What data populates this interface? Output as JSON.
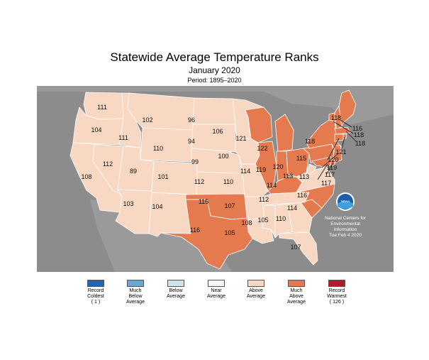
{
  "header": {
    "title": "Statewide Average Temperature Ranks",
    "subtitle": "January 2020",
    "period": "Period: 1895–2020"
  },
  "colors": {
    "water_and_background": "#8c8c8c",
    "record_coldest": "#2166ac",
    "much_below_average": "#6aa6d1",
    "below_average": "#cfe3ee",
    "near_average": "#fbf3ef",
    "above_average": "#f8d8c3",
    "much_above_average": "#e57a4e",
    "record_warmest": "#b11a2c"
  },
  "logo": {
    "name": "noaa-logo",
    "text": "NOAA"
  },
  "credit": {
    "line1": "National Centers for",
    "line2": "Environmental",
    "line3": "Information",
    "line4": "Tue Feb  4 2020"
  },
  "legend": [
    {
      "label": "Record\nColdest\n( 1 )",
      "color_key": "record_coldest"
    },
    {
      "label": "Much\nBelow\nAverage",
      "color_key": "much_below_average"
    },
    {
      "label": "Below\nAverage",
      "color_key": "below_average"
    },
    {
      "label": "Near\nAverage",
      "color_key": "near_average"
    },
    {
      "label": "Above\nAverage",
      "color_key": "above_average"
    },
    {
      "label": "Much\nAbove\nAverage",
      "color_key": "much_above_average"
    },
    {
      "label": "Record\nWarmest\n( 126 )",
      "color_key": "record_warmest"
    }
  ],
  "states": [
    {
      "state": "WA",
      "rank": "111",
      "category": "above_average"
    },
    {
      "state": "OR",
      "rank": "104",
      "category": "above_average"
    },
    {
      "state": "CA",
      "rank": "108",
      "category": "above_average"
    },
    {
      "state": "ID",
      "rank": "111",
      "category": "above_average"
    },
    {
      "state": "NV",
      "rank": "112",
      "category": "above_average"
    },
    {
      "state": "MT",
      "rank": "102",
      "category": "above_average"
    },
    {
      "state": "WY",
      "rank": "110",
      "category": "above_average"
    },
    {
      "state": "UT",
      "rank": "89",
      "category": "above_average"
    },
    {
      "state": "CO",
      "rank": "101",
      "category": "above_average"
    },
    {
      "state": "AZ",
      "rank": "103",
      "category": "above_average"
    },
    {
      "state": "NM",
      "rank": "104",
      "category": "above_average"
    },
    {
      "state": "ND",
      "rank": "96",
      "category": "above_average"
    },
    {
      "state": "SD",
      "rank": "94",
      "category": "above_average"
    },
    {
      "state": "NE",
      "rank": "99",
      "category": "above_average"
    },
    {
      "state": "KS",
      "rank": "112",
      "category": "above_average"
    },
    {
      "state": "OK",
      "rank": "115",
      "category": "much_above_average"
    },
    {
      "state": "TX",
      "rank": "116",
      "category": "much_above_average"
    },
    {
      "state": "MN",
      "rank": "106",
      "category": "above_average"
    },
    {
      "state": "IA",
      "rank": "100",
      "category": "above_average"
    },
    {
      "state": "MO",
      "rank": "110",
      "category": "above_average"
    },
    {
      "state": "AR",
      "rank": "107",
      "category": "above_average"
    },
    {
      "state": "LA",
      "rank": "105",
      "category": "above_average"
    },
    {
      "state": "WI",
      "rank": "121",
      "category": "much_above_average"
    },
    {
      "state": "IL",
      "rank": "114",
      "category": "much_above_average"
    },
    {
      "state": "MI",
      "rank": "122",
      "category": "much_above_average"
    },
    {
      "state": "IN",
      "rank": "119",
      "category": "much_above_average"
    },
    {
      "state": "OH",
      "rank": "120",
      "category": "much_above_average"
    },
    {
      "state": "KY",
      "rank": "114",
      "category": "much_above_average"
    },
    {
      "state": "TN",
      "rank": "112",
      "category": "above_average"
    },
    {
      "state": "MS",
      "rank": "108",
      "category": "above_average"
    },
    {
      "state": "AL",
      "rank": "105",
      "category": "above_average"
    },
    {
      "state": "GA",
      "rank": "110",
      "category": "above_average"
    },
    {
      "state": "FL",
      "rank": "107",
      "category": "above_average"
    },
    {
      "state": "SC",
      "rank": "114",
      "category": "much_above_average"
    },
    {
      "state": "NC",
      "rank": "116",
      "category": "much_above_average"
    },
    {
      "state": "VA",
      "rank": "113",
      "category": "above_average"
    },
    {
      "state": "WV",
      "rank": "113",
      "category": "above_average"
    },
    {
      "state": "PA",
      "rank": "115",
      "category": "much_above_average"
    },
    {
      "state": "NY",
      "rank": "118",
      "category": "much_above_average"
    },
    {
      "state": "ME",
      "rank": "118",
      "category": "much_above_average"
    },
    {
      "state": "NH",
      "rank": "116",
      "category": "much_above_average"
    },
    {
      "state": "VT",
      "rank": "118",
      "category": "much_above_average"
    },
    {
      "state": "MA",
      "rank": "118",
      "category": "much_above_average"
    },
    {
      "state": "RI",
      "rank": "121",
      "category": "much_above_average"
    },
    {
      "state": "CT",
      "rank": "120",
      "category": "much_above_average"
    },
    {
      "state": "NJ",
      "rank": "119",
      "category": "much_above_average"
    },
    {
      "state": "DE",
      "rank": "117",
      "category": "much_above_average"
    },
    {
      "state": "MD",
      "rank": "117",
      "category": "much_above_average"
    }
  ]
}
